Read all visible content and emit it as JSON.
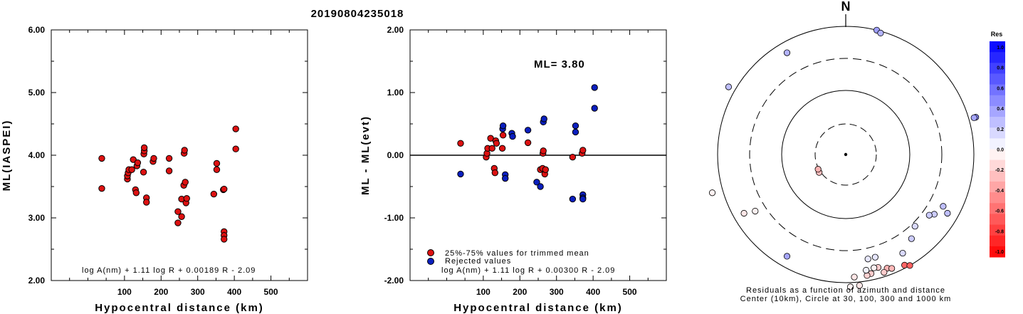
{
  "page_title": "20190804235018",
  "left_plot": {
    "ylabel": "ML(IASPEI)",
    "xlabel": "Hypocentral distance (km)",
    "formula": "log A(nm) + 1.11 log R + 0.00189 R - 2.09"
  },
  "middle_plot": {
    "ylabel": "ML - ML(evt)",
    "xlabel": "Hypocentral distance (km)",
    "ml_label": "ML= 3.80",
    "legend_trimmed": "25%-75% values for trimmed mean",
    "legend_rejected": "Rejected values",
    "formula": "log A(nm) + 1.11 log R + 0.00300 R - 2.09"
  },
  "polar_plot": {
    "north_label": "N",
    "caption_line1": "Residuals as a function of azimuth and distance",
    "caption_line2": "Center (10km), Circle at 30, 100, 300 and 1000 km",
    "colorbar_title": "Res",
    "colorbar_ticks": [
      "1.0",
      "0.8",
      "0.6",
      "0.4",
      "0.2",
      "0.0",
      "-0.2",
      "-0.4",
      "-0.6",
      "-0.8",
      "-1.0"
    ]
  },
  "colors": {
    "trimmed": "#dd1111",
    "rejected": "#0a1fbf",
    "positive_residual": "#0000ff",
    "negative_residual": "#ff0000"
  },
  "chart_data": [
    {
      "id": "magnitude_vs_distance",
      "type": "scatter",
      "xlabel": "Hypocentral distance (km)",
      "ylabel": "ML(IASPEI)",
      "xlim": [
        -100,
        600
      ],
      "ylim": [
        2.0,
        6.0
      ],
      "xticks": [
        100,
        200,
        300,
        400,
        500
      ],
      "yticks": [
        "2.00",
        "3.00",
        "4.00",
        "5.00",
        "6.00"
      ],
      "points": [
        [
          38,
          3.95
        ],
        [
          38,
          3.47
        ],
        [
          108,
          3.62
        ],
        [
          108,
          3.67
        ],
        [
          110,
          3.72
        ],
        [
          112,
          3.77
        ],
        [
          120,
          3.77
        ],
        [
          124,
          3.93
        ],
        [
          130,
          3.45
        ],
        [
          132,
          3.4
        ],
        [
          134,
          3.83
        ],
        [
          136,
          3.88
        ],
        [
          152,
          3.73
        ],
        [
          153,
          4.02
        ],
        [
          154,
          4.07
        ],
        [
          154,
          4.12
        ],
        [
          160,
          3.32
        ],
        [
          160,
          3.25
        ],
        [
          178,
          3.9
        ],
        [
          180,
          3.95
        ],
        [
          222,
          3.95
        ],
        [
          222,
          3.75
        ],
        [
          246,
          3.1
        ],
        [
          246,
          2.92
        ],
        [
          256,
          3.02
        ],
        [
          256,
          3.3
        ],
        [
          262,
          3.52
        ],
        [
          263,
          4.03
        ],
        [
          264,
          4.08
        ],
        [
          266,
          3.57
        ],
        [
          268,
          3.24
        ],
        [
          270,
          3.31
        ],
        [
          344,
          3.38
        ],
        [
          352,
          3.77
        ],
        [
          352,
          3.87
        ],
        [
          370,
          3.45
        ],
        [
          372,
          2.78
        ],
        [
          372,
          2.72
        ],
        [
          372,
          2.66
        ],
        [
          372,
          3.46
        ],
        [
          404,
          4.42
        ],
        [
          404,
          4.1
        ]
      ]
    },
    {
      "id": "residual_vs_distance",
      "type": "scatter",
      "xlabel": "Hypocentral distance (km)",
      "ylabel": "ML - ML(evt)",
      "xlim": [
        -100,
        600
      ],
      "ylim": [
        -2.0,
        2.0
      ],
      "xticks": [
        100,
        200,
        300,
        400,
        500
      ],
      "yticks": [
        "-2.00",
        "-1.00",
        "0.00",
        "1.00",
        "2.00"
      ],
      "series": [
        {
          "name": "25%-75% values for trimmed mean",
          "points": [
            [
              38,
              0.19
            ],
            [
              108,
              -0.03
            ],
            [
              110,
              0.03
            ],
            [
              112,
              0.11
            ],
            [
              120,
              0.27
            ],
            [
              124,
              0.11
            ],
            [
              130,
              -0.21
            ],
            [
              132,
              -0.28
            ],
            [
              134,
              0.23
            ],
            [
              136,
              0.19
            ],
            [
              152,
              0.11
            ],
            [
              154,
              0.32
            ],
            [
              222,
              0.2
            ],
            [
              256,
              -0.23
            ],
            [
              262,
              -0.21
            ],
            [
              263,
              0.03
            ],
            [
              264,
              0.07
            ],
            [
              268,
              -0.3
            ],
            [
              270,
              -0.23
            ],
            [
              344,
              -0.03
            ],
            [
              370,
              0.03
            ],
            [
              372,
              0.08
            ]
          ]
        },
        {
          "name": "Rejected values",
          "points": [
            [
              38,
              -0.3
            ],
            [
              153,
              0.42
            ],
            [
              154,
              0.47
            ],
            [
              160,
              -0.31
            ],
            [
              160,
              -0.37
            ],
            [
              178,
              0.35
            ],
            [
              180,
              0.3
            ],
            [
              222,
              0.4
            ],
            [
              246,
              -0.43
            ],
            [
              256,
              -0.5
            ],
            [
              264,
              0.53
            ],
            [
              266,
              0.58
            ],
            [
              344,
              -0.7
            ],
            [
              352,
              0.37
            ],
            [
              352,
              0.47
            ],
            [
              372,
              -0.63
            ],
            [
              372,
              -0.68
            ],
            [
              372,
              -0.7
            ],
            [
              404,
              1.08
            ],
            [
              404,
              0.75
            ]
          ]
        }
      ],
      "reference_line": 0.0
    },
    {
      "id": "residual_azimuth_map",
      "type": "scatter",
      "description_rings_km": [
        30,
        100,
        300,
        1000
      ],
      "center_km": 10,
      "points_polar": [
        [
          14,
          360,
          0.38
        ],
        [
          16,
          355,
          0.3
        ],
        [
          330,
          330,
          0.3
        ],
        [
          300,
          380,
          0.25
        ],
        [
          74,
          380,
          0.45
        ],
        [
          74,
          375,
          0.35
        ],
        [
          254,
          390,
          -0.05
        ],
        [
          240,
          330,
          -0.1
        ],
        [
          238,
          300,
          -0.05
        ],
        [
          236,
          90,
          -0.25
        ],
        [
          242,
          88,
          -0.3
        ],
        [
          118,
          310,
          0.25
        ],
        [
          120,
          330,
          0.25
        ],
        [
          124,
          300,
          0.2
        ],
        [
          126,
          290,
          0.2
        ],
        [
          136,
          280,
          0.15
        ],
        [
          142,
          300,
          0.2
        ],
        [
          150,
          320,
          0.15
        ],
        [
          164,
          300,
          0.1
        ],
        [
          168,
          300,
          0.1
        ],
        [
          160,
          340,
          -0.3
        ],
        [
          158,
          345,
          -0.28
        ],
        [
          162,
          348,
          -0.2
        ],
        [
          164,
          330,
          -0.2
        ],
        [
          168,
          342,
          -0.2
        ],
        [
          170,
          345,
          -0.18
        ],
        [
          176,
          345,
          -0.1
        ],
        [
          174,
          370,
          -0.1
        ],
        [
          178,
          372,
          -0.05
        ],
        [
          152,
          352,
          -0.6
        ],
        [
          150,
          360,
          -0.62
        ],
        [
          210,
          330,
          0.35
        ],
        [
          170,
          330,
          0.05
        ],
        [
          166,
          328,
          -0.05
        ]
      ]
    }
  ]
}
